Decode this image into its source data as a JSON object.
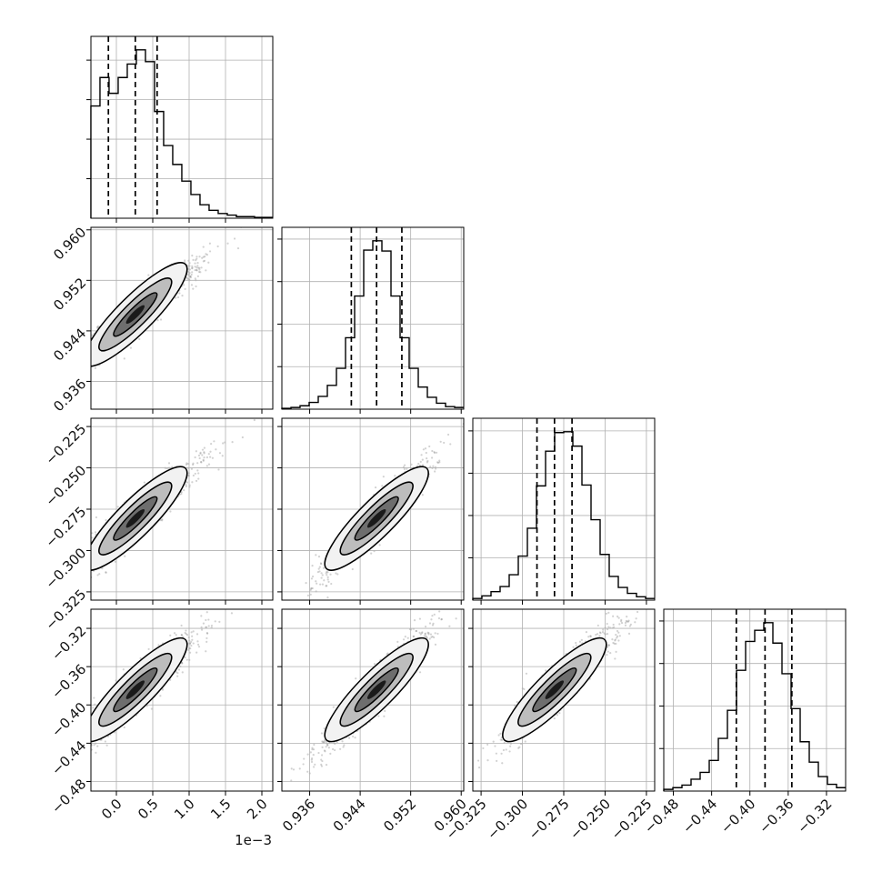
{
  "chart_data": {
    "type": "corner",
    "variables": [
      {
        "index": 0,
        "range": [
          -0.00035,
          0.00215
        ],
        "xticks": [
          0.0,
          0.0005,
          0.001,
          0.0015,
          0.002
        ],
        "xtick_labels": [
          "0.0",
          "0.5",
          "1.0",
          "1.5",
          "2.0"
        ],
        "offset_label": "1e−3",
        "quantiles": [
          -0.00011,
          0.00026,
          0.00056
        ],
        "hist_centers": [
          -0.000288,
          -0.000163,
          -3.8e-05,
          8.7e-05,
          0.000212,
          0.000337,
          0.000462,
          0.000587,
          0.000712,
          0.000837,
          0.000962,
          0.001087,
          0.001212,
          0.001337,
          0.001462,
          0.001587,
          0.001712,
          0.001837,
          0.001962,
          0.002087
        ],
        "hist_counts": [
          142,
          178,
          158,
          178,
          195,
          213,
          198,
          135,
          92,
          68,
          47,
          30,
          17,
          10,
          6,
          4,
          2,
          2,
          1,
          1
        ]
      },
      {
        "index": 1,
        "range": [
          0.9316,
          0.9604
        ],
        "ticks": [
          0.936,
          0.944,
          0.952,
          0.96
        ],
        "tick_labels": [
          "0.936",
          "0.944",
          "0.952",
          "0.960"
        ],
        "quantiles": [
          0.9426,
          0.9466,
          0.9506
        ],
        "hist_centers": [
          0.93232,
          0.93376,
          0.9352,
          0.93664,
          0.93808,
          0.93952,
          0.94096,
          0.9424,
          0.94384,
          0.94528,
          0.94672,
          0.94816,
          0.9496,
          0.95104,
          0.95248,
          0.95392,
          0.95536,
          0.9568,
          0.95824,
          0.95968
        ],
        "hist_counts": [
          1,
          2,
          4,
          8,
          15,
          28,
          48,
          84,
          133,
          187,
          198,
          186,
          133,
          84,
          48,
          26,
          14,
          7,
          3,
          2
        ]
      },
      {
        "index": 2,
        "range": [
          -0.33,
          -0.22
        ],
        "ticks": [
          -0.325,
          -0.3,
          -0.275,
          -0.25,
          -0.225
        ],
        "tick_labels": [
          "−0.325",
          "−0.300",
          "−0.275",
          "−0.250",
          "−0.225"
        ],
        "quantiles": [
          -0.2912,
          -0.2806,
          -0.27
        ],
        "hist_centers": [
          -0.32725,
          -0.32175,
          -0.31625,
          -0.31075,
          -0.30525,
          -0.29975,
          -0.29425,
          -0.28875,
          -0.28325,
          -0.27775,
          -0.27225,
          -0.26675,
          -0.26125,
          -0.25575,
          -0.25025,
          -0.24475,
          -0.23925,
          -0.23375,
          -0.22825,
          -0.22275
        ],
        "hist_counts": [
          2,
          5,
          10,
          16,
          30,
          52,
          85,
          135,
          176,
          198,
          199,
          182,
          136,
          95,
          54,
          28,
          15,
          8,
          4,
          2
        ]
      },
      {
        "index": 3,
        "range": [
          -0.49,
          -0.3
        ],
        "ticks": [
          -0.48,
          -0.44,
          -0.4,
          -0.36,
          -0.32
        ],
        "tick_labels": [
          "−0.48",
          "−0.44",
          "−0.40",
          "−0.36",
          "−0.32"
        ],
        "quantiles": [
          -0.4142,
          -0.3842,
          -0.3562
        ],
        "hist_centers": [
          -0.48525,
          -0.47575,
          -0.46625,
          -0.45675,
          -0.44725,
          -0.43775,
          -0.42825,
          -0.41875,
          -0.40925,
          -0.39975,
          -0.39025,
          -0.38075,
          -0.37125,
          -0.36175,
          -0.35225,
          -0.34275,
          -0.33325,
          -0.32375,
          -0.31425,
          -0.30475
        ],
        "hist_counts": [
          2,
          4,
          7,
          14,
          22,
          36,
          62,
          95,
          142,
          176,
          189,
          198,
          174,
          138,
          97,
          58,
          34,
          17,
          8,
          4
        ]
      }
    ],
    "title": "",
    "xlabel": "",
    "ylabel": "",
    "grid": true,
    "legend": "none",
    "colors": {
      "line": "#000000",
      "grid": "#b0b0b0",
      "points": "#7f7f7f"
    }
  }
}
